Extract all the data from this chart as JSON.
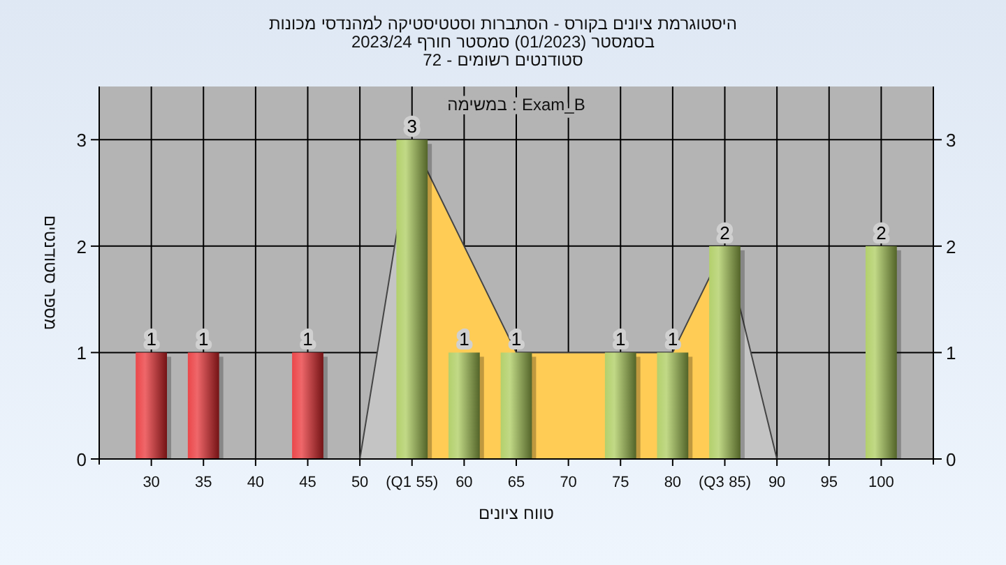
{
  "chart_data": {
    "type": "bar",
    "title": "מכונות למהנדסי וסטטיסטיקה הסתברות - בקורס ציונים היסטוגרמת",
    "subtitle": "2023/24 חורף סמסטר (01/2023) בסמסטר\n72 - רשומים סטודנטים",
    "xlabel": "ציונים טווח",
    "ylabel": "סטודנטים מספר",
    "annotations": [
      "במשימה : Exam_B"
    ],
    "xlim": [
      25,
      105
    ],
    "xticks": [
      30,
      35,
      40,
      45,
      50,
      {
        "value": 55,
        "label": "(Q1 55)"
      },
      60,
      65,
      70,
      75,
      80,
      {
        "value": 85,
        "label": "(Q3 85)"
      },
      90,
      95,
      100
    ],
    "ylim": [
      0,
      3.5
    ],
    "yticks": [
      0,
      1,
      2,
      3
    ],
    "y2lim": [
      0,
      3.5
    ],
    "y2ticks": [
      0,
      1,
      2,
      3
    ],
    "grid": true,
    "series": [
      {
        "type": "area",
        "color": "#c4c4c4",
        "x": [
          50,
          55
        ],
        "values": [
          0,
          3
        ]
      },
      {
        "type": "area",
        "color": "#ffcc55",
        "x": [
          55,
          65,
          70,
          75,
          80,
          85
        ],
        "values": [
          3,
          1,
          1,
          1,
          1,
          2
        ]
      },
      {
        "type": "area",
        "color": "#c4c4c4",
        "x": [
          85,
          90
        ],
        "values": [
          2,
          0
        ]
      },
      {
        "x": [
          30,
          35,
          45,
          55,
          60,
          65,
          75,
          80,
          85,
          100
        ],
        "values": [
          1,
          1,
          1,
          3,
          1,
          1,
          1,
          1,
          2,
          2
        ],
        "colors": [
          "#e8262a",
          "#e8262a",
          "#e8262a",
          "#a6c852",
          "#a6c852",
          "#a6c852",
          "#a6c852",
          "#a6c852",
          "#a6c852",
          "#a6c852"
        ],
        "value_labels": [
          "1",
          "1",
          "1",
          "3",
          "1",
          "1",
          "1",
          "1",
          "2",
          "2"
        ]
      }
    ]
  }
}
